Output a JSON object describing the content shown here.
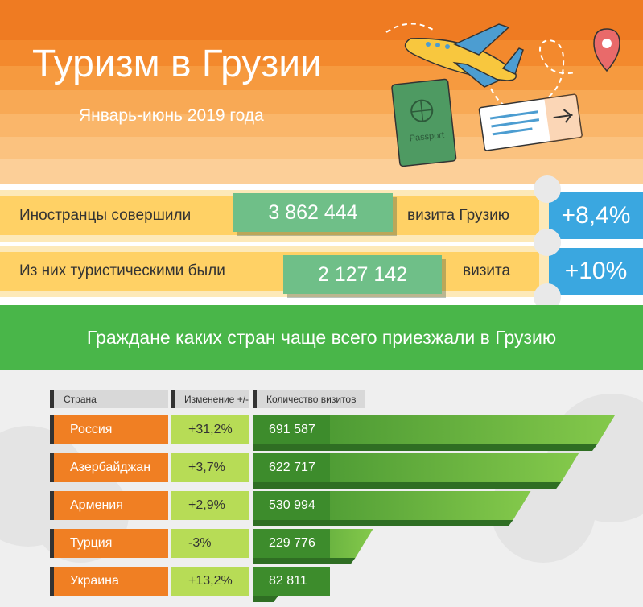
{
  "header": {
    "title": "Туризм в Грузии",
    "subtitle": "Январь-июнь 2019 года",
    "passport_label": "Passport"
  },
  "stats": [
    {
      "label": "Иностранцы совершили",
      "value": "3 862 444",
      "suffix": "визита Грузию",
      "change": "+8,4%"
    },
    {
      "label": "Из них туристическими были",
      "value": "2 127 142",
      "suffix": "визита",
      "change": "+10%"
    }
  ],
  "band_title": "Граждане каких стран чаще всего приезжали в Грузию",
  "colors": {
    "orange": "#f07f23",
    "yellow": "#ffd165",
    "green_band": "#49b649",
    "bar_green": "#77c044",
    "bar_dark_green": "#3d8c2c",
    "change_green": "#b7dc56",
    "blue": "#3aa7e0"
  },
  "chart_data": {
    "type": "bar",
    "orientation": "horizontal",
    "columns": [
      "Страна",
      "Изменение +/-",
      "Количество визитов"
    ],
    "categories": [
      "Россия",
      "Азербайджан",
      "Армения",
      "Турция",
      "Украина"
    ],
    "changes": [
      "+31,2%",
      "+3,7%",
      "+2,9%",
      "-3%",
      "+13,2%"
    ],
    "values": [
      691587,
      622717,
      530994,
      229776,
      82811
    ],
    "value_labels": [
      "691 587",
      "622 717",
      "530 994",
      "229 776",
      "82 811"
    ],
    "grid": false,
    "legend": "none"
  }
}
